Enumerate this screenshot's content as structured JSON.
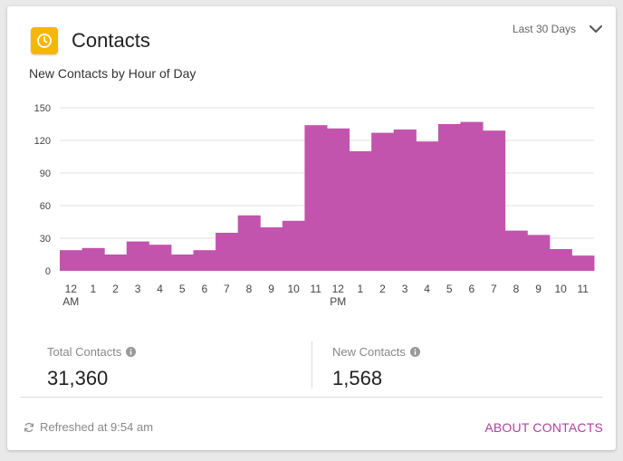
{
  "header": {
    "title": "Contacts",
    "icon": "clock-icon",
    "icon_color": "#f5b800",
    "date_range": "Last 30 Days"
  },
  "chart_title": "New Contacts by Hour of Day",
  "chart_data": {
    "type": "bar",
    "title": "New Contacts by Hour of Day",
    "categories": [
      "12 AM",
      "1",
      "2",
      "3",
      "4",
      "5",
      "6",
      "7",
      "8",
      "9",
      "10",
      "11",
      "12 PM",
      "1",
      "2",
      "3",
      "4",
      "5",
      "6",
      "7",
      "8",
      "9",
      "10",
      "11"
    ],
    "tick_labels": [
      [
        "12",
        "AM"
      ],
      [
        "1"
      ],
      [
        "2"
      ],
      [
        "3"
      ],
      [
        "4"
      ],
      [
        "5"
      ],
      [
        "6"
      ],
      [
        "7"
      ],
      [
        "8"
      ],
      [
        "9"
      ],
      [
        "10"
      ],
      [
        "11"
      ],
      [
        "12",
        "PM"
      ],
      [
        "1"
      ],
      [
        "2"
      ],
      [
        "3"
      ],
      [
        "4"
      ],
      [
        "5"
      ],
      [
        "6"
      ],
      [
        "7"
      ],
      [
        "8"
      ],
      [
        "9"
      ],
      [
        "10"
      ],
      [
        "11"
      ]
    ],
    "values": [
      19,
      21,
      15,
      27,
      24,
      15,
      19,
      35,
      51,
      40,
      46,
      134,
      131,
      110,
      127,
      130,
      119,
      135,
      137,
      129,
      37,
      33,
      20,
      14
    ],
    "ylim": [
      0,
      150
    ],
    "yticks": [
      0,
      30,
      60,
      90,
      120,
      150
    ],
    "grid": true,
    "color": "#c254ad"
  },
  "stats": {
    "total": {
      "label": "Total Contacts",
      "value": "31,360"
    },
    "new": {
      "label": "New Contacts",
      "value": "1,568"
    }
  },
  "footer": {
    "refreshed": "Refreshed at 9:54 am",
    "about_link": "ABOUT CONTACTS",
    "link_color": "#b1419f"
  }
}
